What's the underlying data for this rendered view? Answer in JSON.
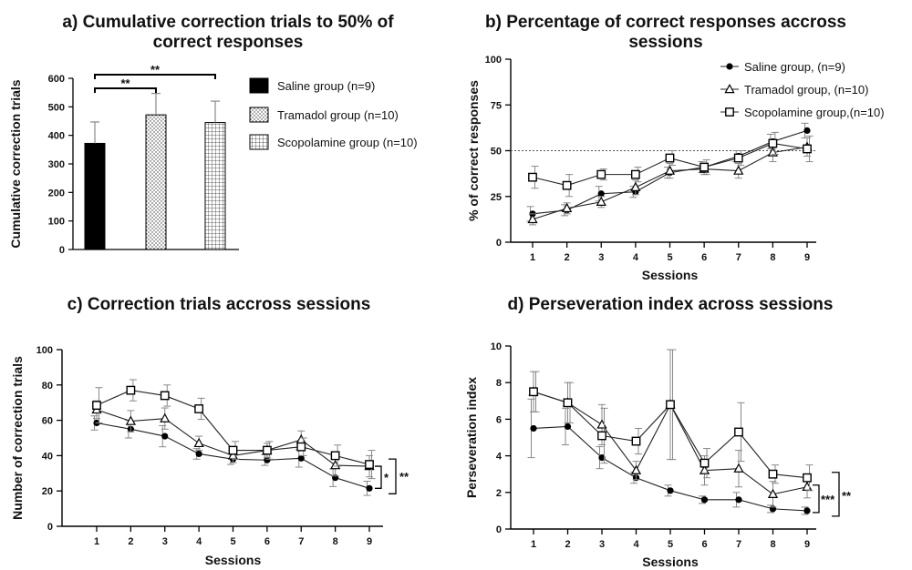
{
  "panels": [
    {
      "id": "a",
      "type": "bar",
      "title_lines": [
        "a)  Cumulative correction trials to 50% of",
        "correct responses"
      ],
      "ylabel": "Cumulative correction trials",
      "xlabel": "",
      "ylim": [
        0,
        600
      ],
      "yticks": [
        "0",
        "100",
        "200",
        "300",
        "400",
        "500",
        "600"
      ],
      "yticks_v": [
        0,
        100,
        200,
        300,
        400,
        500,
        600
      ],
      "legend_position": "right",
      "significance": [
        "**",
        "**"
      ],
      "series": [
        {
          "name": "Saline group (n=9)",
          "value": 372,
          "error": 75,
          "fill": "solid",
          "color": "#000000"
        },
        {
          "name": "Tramadol group (n=10)",
          "value": 472,
          "error": 75,
          "fill": "dots",
          "color": "#000000"
        },
        {
          "name": "Scopolamine group (n=10)",
          "value": 445,
          "error": 75,
          "fill": "grid",
          "color": "#000000"
        }
      ]
    },
    {
      "id": "b",
      "type": "line",
      "title_lines": [
        "b) Percentage of correct responses accross",
        "sessions"
      ],
      "xlabel": "Sessions",
      "ylabel": "% of correct responses",
      "x": [
        1,
        2,
        3,
        4,
        5,
        6,
        7,
        8,
        9
      ],
      "xticks": [
        "1",
        "2",
        "3",
        "4",
        "5",
        "6",
        "7",
        "8",
        "9"
      ],
      "ylim": [
        0,
        100
      ],
      "yticks": [
        "0",
        "25",
        "50",
        "75",
        "100"
      ],
      "yticks_v": [
        0,
        25,
        50,
        75,
        100
      ],
      "reference_line": 50,
      "legend_position": "top-right",
      "series": [
        {
          "name": "Saline group, (n=9)",
          "marker": "circle",
          "values": [
            15.5,
            17.5,
            26.5,
            27.5,
            38,
            41,
            47,
            55,
            61
          ],
          "errors": [
            4,
            3,
            4,
            3,
            3,
            3,
            3,
            4,
            4
          ]
        },
        {
          "name": "Tramadol group, (n=10)",
          "marker": "triangle",
          "values": [
            12.5,
            18.5,
            22,
            30,
            39,
            40,
            39,
            49,
            52
          ],
          "errors": [
            3,
            3,
            3,
            4,
            4,
            3,
            4,
            5,
            5
          ]
        },
        {
          "name": "Scopolamine group,(n=10)",
          "marker": "square",
          "values": [
            35.5,
            31,
            37,
            37,
            46,
            41,
            46,
            54,
            51
          ],
          "errors": [
            6,
            6,
            3,
            4,
            4,
            4,
            4,
            6,
            7
          ]
        }
      ]
    },
    {
      "id": "c",
      "type": "line",
      "title_lines": [
        "c) Correction trials accross sessions"
      ],
      "xlabel": "Sessions",
      "ylabel": "Number of correction trials",
      "x": [
        1,
        2,
        3,
        4,
        5,
        6,
        7,
        8,
        9
      ],
      "xticks": [
        "1",
        "2",
        "3",
        "4",
        "5",
        "6",
        "7",
        "8",
        "9"
      ],
      "ylim": [
        0,
        100
      ],
      "yticks": [
        "0",
        "20",
        "40",
        "60",
        "80",
        "100"
      ],
      "yticks_v": [
        0,
        20,
        40,
        60,
        80,
        100
      ],
      "significance": [
        "*",
        "**"
      ],
      "series": [
        {
          "name": "Saline group",
          "marker": "circle",
          "values": [
            58.5,
            55,
            51,
            41,
            38,
            37.5,
            38.5,
            27.5,
            21.5
          ],
          "errors": [
            4,
            5,
            6,
            3,
            3,
            3,
            5,
            5,
            4
          ]
        },
        {
          "name": "Tramadol group",
          "marker": "triangle",
          "values": [
            66,
            59.5,
            61,
            47,
            40,
            43,
            49,
            34.5,
            34
          ],
          "errors": [
            5,
            6,
            6,
            4,
            4,
            4,
            5,
            6,
            6
          ]
        },
        {
          "name": "Scopolamine group",
          "marker": "square",
          "values": [
            68.5,
            77,
            74,
            66.5,
            43,
            43,
            45,
            40,
            35
          ],
          "errors": [
            10,
            6,
            6,
            6,
            5,
            5,
            5,
            6,
            8
          ]
        }
      ]
    },
    {
      "id": "d",
      "type": "line",
      "title_lines": [
        "d) Perseveration index across sessions"
      ],
      "xlabel": "Sessions",
      "ylabel": "Perseveration index",
      "x": [
        1,
        2,
        3,
        4,
        5,
        6,
        7,
        8,
        9
      ],
      "xticks": [
        "1",
        "2",
        "3",
        "4",
        "5",
        "6",
        "7",
        "8",
        "9"
      ],
      "ylim": [
        0,
        10
      ],
      "yticks": [
        "0",
        "2",
        "4",
        "6",
        "8",
        "10"
      ],
      "yticks_v": [
        0,
        2,
        4,
        6,
        8,
        10
      ],
      "significance": [
        "***",
        "**"
      ],
      "series": [
        {
          "name": "Saline group",
          "marker": "circle",
          "values": [
            5.5,
            5.6,
            3.9,
            2.8,
            2.1,
            1.6,
            1.6,
            1.1,
            1.0
          ],
          "errors": [
            1.6,
            1.0,
            0.6,
            0.3,
            0.3,
            0.2,
            0.4,
            0.2,
            0.2
          ]
        },
        {
          "name": "Tramadol group",
          "marker": "triangle",
          "values": [
            7.5,
            6.9,
            5.7,
            3.2,
            6.8,
            3.2,
            3.3,
            1.9,
            2.3
          ],
          "errors": [
            1.1,
            1.1,
            1.1,
            0.5,
            3.0,
            0.8,
            1.0,
            0.7,
            0.6
          ]
        },
        {
          "name": "Scopolamine group",
          "marker": "square",
          "values": [
            7.5,
            6.9,
            5.1,
            4.8,
            6.8,
            3.6,
            5.3,
            3.0,
            2.8
          ],
          "errors": [
            1.1,
            1.1,
            1.5,
            0.7,
            3.0,
            0.8,
            1.6,
            0.5,
            0.7
          ]
        }
      ]
    }
  ]
}
